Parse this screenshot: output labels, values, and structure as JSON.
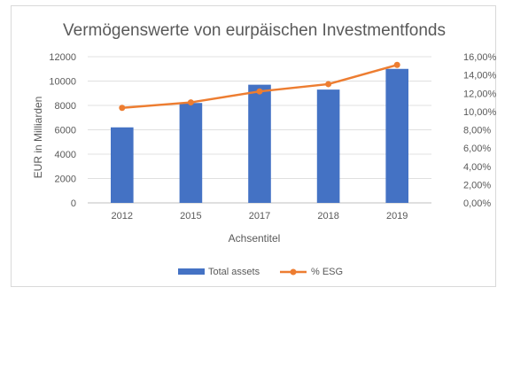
{
  "chart_data": {
    "type": "bar+line",
    "title": "Vermögenswerte von eurpäischen Investmentfonds",
    "xlabel": "Achsentitel",
    "ylabel": "EUR in Milliarden",
    "categories": [
      "2012",
      "2015",
      "2017",
      "2018",
      "2019"
    ],
    "ylim": [
      0,
      12000
    ],
    "y_ticks": [
      "0",
      "2000",
      "4000",
      "6000",
      "8000",
      "10000",
      "12000"
    ],
    "y2lim": [
      0,
      0.16
    ],
    "y2_ticks": [
      "0,00%",
      "2,00%",
      "4,00%",
      "6,00%",
      "8,00%",
      "10,00%",
      "12,00%",
      "14,00%",
      "16,00%"
    ],
    "grid": true,
    "legend_position": "bottom",
    "series": [
      {
        "name": "Total assets",
        "type": "bar",
        "axis": "left",
        "color": "#4472C4",
        "values": [
          6200,
          8200,
          9700,
          9300,
          11000
        ]
      },
      {
        "name": "% ESG",
        "type": "line",
        "axis": "right",
        "color": "#ED7D31",
        "values": [
          0.104,
          0.11,
          0.122,
          0.13,
          0.151
        ]
      }
    ]
  }
}
